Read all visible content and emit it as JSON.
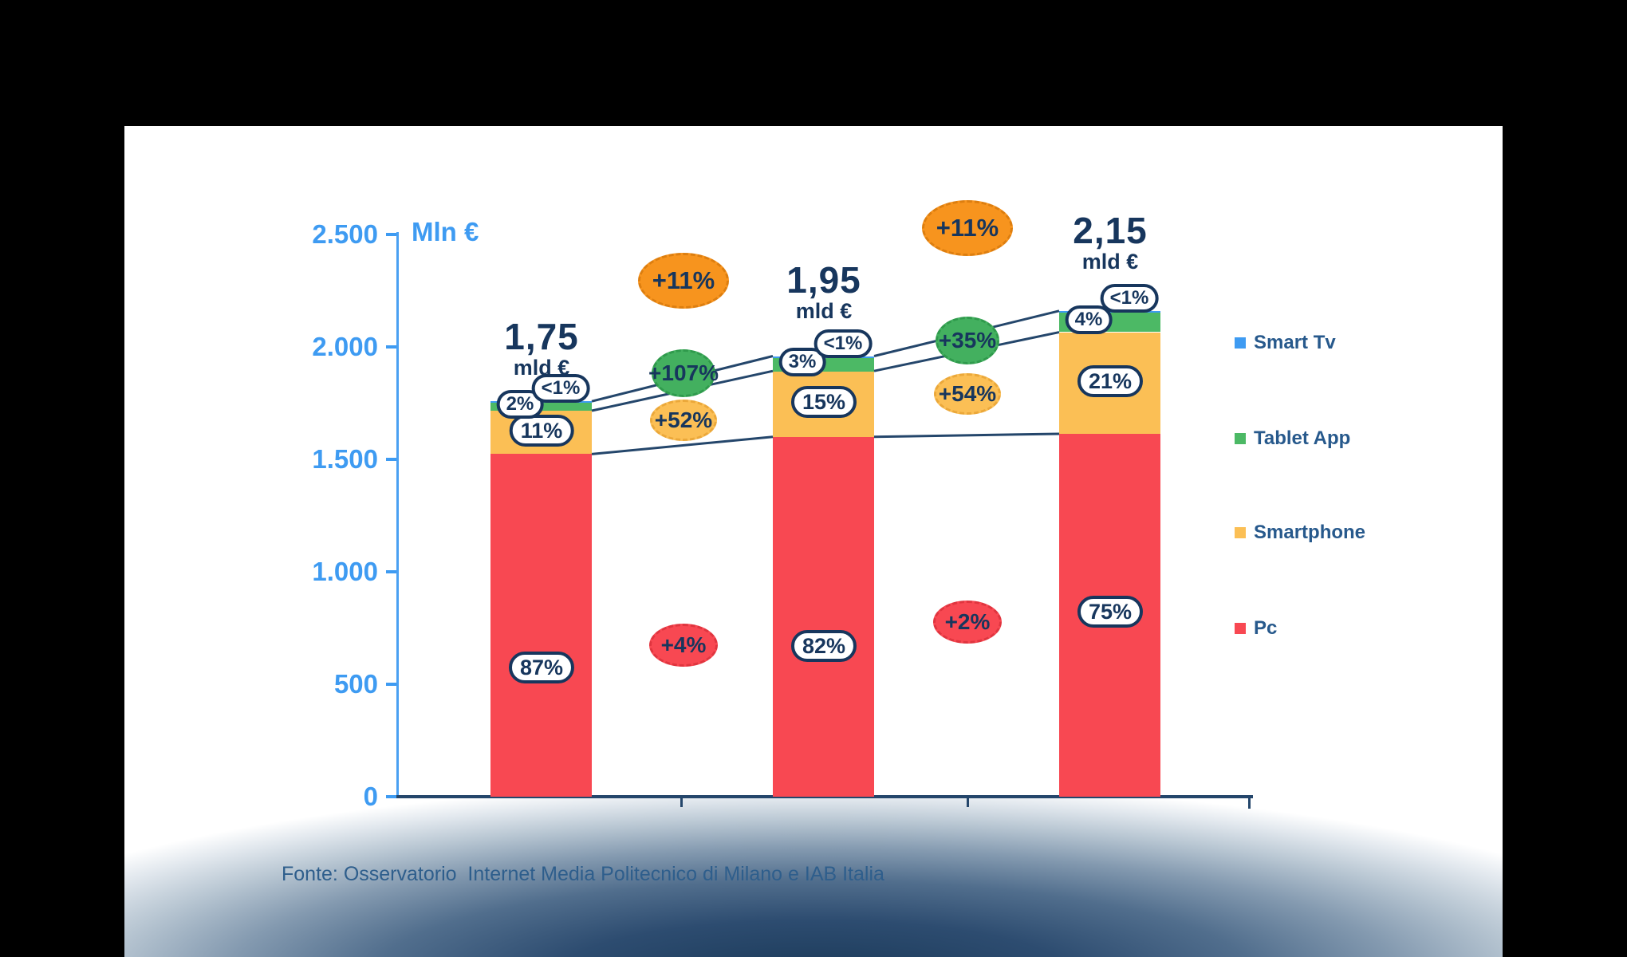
{
  "frame": {
    "background": "#000000"
  },
  "slide": {
    "background": "#FFFFFF"
  },
  "footer": {
    "text": "Fonte: Osservatorio  Internet Media Politecnico di Milano e IAB Italia"
  },
  "chart_data": {
    "type": "bar",
    "stacked": true,
    "title": "",
    "unit_label": "Mln €",
    "ylim": [
      0,
      2500
    ],
    "grid": false,
    "legend_position": "right",
    "y_ticks": [
      {
        "label": "2.500",
        "value": 2500
      },
      {
        "label": "2.000",
        "value": 2000
      },
      {
        "label": "1.500",
        "value": 1500
      },
      {
        "label": "1.000",
        "value": 1000
      },
      {
        "label": "500",
        "value": 500
      },
      {
        "label": "0",
        "value": 0
      }
    ],
    "series": [
      {
        "name": "Pc",
        "color": "#F84852"
      },
      {
        "name": "Smartphone",
        "color": "#FBBF55"
      },
      {
        "name": "Tablet App",
        "color": "#4CB965"
      },
      {
        "name": "Smart Tv",
        "color": "#3E9BF2"
      }
    ],
    "bars": [
      {
        "total_mln": 1750,
        "total_label": "1,75",
        "total_unit": "mld €",
        "segments": [
          {
            "series": "Pc",
            "pct": 87,
            "pct_label": "87%"
          },
          {
            "series": "Smartphone",
            "pct": 11,
            "pct_label": "11%"
          },
          {
            "series": "Tablet App",
            "pct": 2,
            "pct_label": "2%"
          },
          {
            "series": "Smart Tv",
            "pct": 0.4,
            "pct_label": "<1%"
          }
        ]
      },
      {
        "total_mln": 1950,
        "total_label": "1,95",
        "total_unit": "mld €",
        "segments": [
          {
            "series": "Pc",
            "pct": 82,
            "pct_label": "82%"
          },
          {
            "series": "Smartphone",
            "pct": 15,
            "pct_label": "15%"
          },
          {
            "series": "Tablet App",
            "pct": 3,
            "pct_label": "3%"
          },
          {
            "series": "Smart Tv",
            "pct": 0.4,
            "pct_label": "<1%"
          }
        ]
      },
      {
        "total_mln": 2150,
        "total_label": "2,15",
        "total_unit": "mld €",
        "segments": [
          {
            "series": "Pc",
            "pct": 75,
            "pct_label": "75%"
          },
          {
            "series": "Smartphone",
            "pct": 21,
            "pct_label": "21%"
          },
          {
            "series": "Tablet App",
            "pct": 4,
            "pct_label": "4%"
          },
          {
            "series": "Smart Tv",
            "pct": 0.4,
            "pct_label": "<1%"
          }
        ]
      }
    ],
    "growth_badges": [
      {
        "label": "+11%",
        "between_bars": "1-2",
        "metric": "total",
        "color": "#F7941E"
      },
      {
        "label": "+107%",
        "between_bars": "1-2",
        "metric": "tablet_app",
        "color": "#43B05F"
      },
      {
        "label": "+52%",
        "between_bars": "1-2",
        "metric": "smartphone",
        "color": "#FBBF55"
      },
      {
        "label": "+4%",
        "between_bars": "1-2",
        "metric": "pc",
        "color": "#F84852"
      },
      {
        "label": "+11%",
        "between_bars": "2-3",
        "metric": "total",
        "color": "#F7941E"
      },
      {
        "label": "+35%",
        "between_bars": "2-3",
        "metric": "tablet_app",
        "color": "#43B05F"
      },
      {
        "label": "+54%",
        "between_bars": "2-3",
        "metric": "smartphone",
        "color": "#FBBF55"
      },
      {
        "label": "+2%",
        "between_bars": "2-3",
        "metric": "pc",
        "color": "#F84852"
      }
    ],
    "legend": [
      {
        "label": "Smart Tv",
        "color": "#3E9BF2"
      },
      {
        "label": "Tablet App",
        "color": "#4CB965"
      },
      {
        "label": "Smartphone",
        "color": "#FBBF55"
      },
      {
        "label": "Pc",
        "color": "#F84852"
      }
    ],
    "text_colors": {
      "axis_blue": "#3E9BF2",
      "navy": "#17365D",
      "legend_text": "#27598C",
      "footer_text": "#2E5E8C",
      "line": "#24466B"
    }
  }
}
